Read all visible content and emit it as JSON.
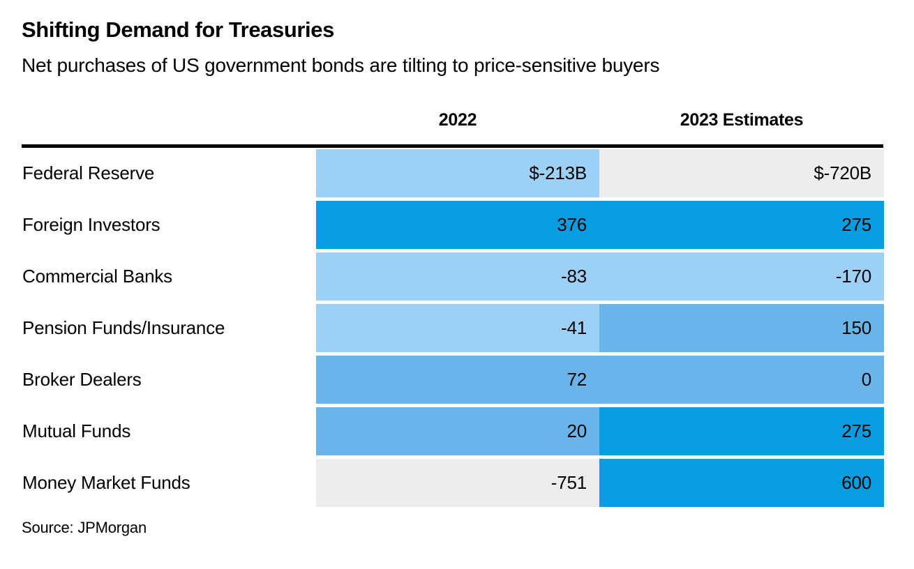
{
  "chart_data": {
    "type": "heatmap",
    "title": "Shifting Demand for Treasuries",
    "subtitle": "Net purchases of US government bonds are tilting to price-sensitive buyers",
    "columns": [
      "2022",
      "2023 Estimates"
    ],
    "rows": [
      {
        "label": "Federal Reserve",
        "values": [
          -213,
          -720
        ],
        "display": [
          "$-213B",
          "$-720B"
        ],
        "colors": [
          "#9dd0f5",
          "#ededee"
        ]
      },
      {
        "label": "Foreign Investors",
        "values": [
          376,
          275
        ],
        "display": [
          "376",
          "275"
        ],
        "colors": [
          "#089ce0",
          "#089ce0"
        ]
      },
      {
        "label": "Commercial Banks",
        "values": [
          -83,
          -170
        ],
        "display": [
          "-83",
          "-170"
        ],
        "colors": [
          "#9dd0f5",
          "#9dd0f5"
        ]
      },
      {
        "label": "Pension Funds/Insurance",
        "values": [
          -41,
          150
        ],
        "display": [
          "-41",
          "150"
        ],
        "colors": [
          "#9dd0f5",
          "#69b5e9"
        ]
      },
      {
        "label": "Broker Dealers",
        "values": [
          72,
          0
        ],
        "display": [
          "72",
          "0"
        ],
        "colors": [
          "#69b5e9",
          "#69b5e9"
        ]
      },
      {
        "label": "Mutual Funds",
        "values": [
          20,
          275
        ],
        "display": [
          "20",
          "275"
        ],
        "colors": [
          "#69b5e9",
          "#089ce0"
        ]
      },
      {
        "label": "Money Market Funds",
        "values": [
          -751,
          600
        ],
        "display": [
          "-751",
          "600"
        ],
        "colors": [
          "#ededee",
          "#089ce0"
        ]
      }
    ],
    "source": "Source: JPMorgan",
    "palette": {
      "large_positive": "#089ce0",
      "small_positive": "#69b5e9",
      "negative": "#9dd0f5",
      "large_negative": "#ededee",
      "rule": "#000000",
      "text": "#000000",
      "background": "#ffffff"
    },
    "legend_position": "none",
    "grid": false
  }
}
